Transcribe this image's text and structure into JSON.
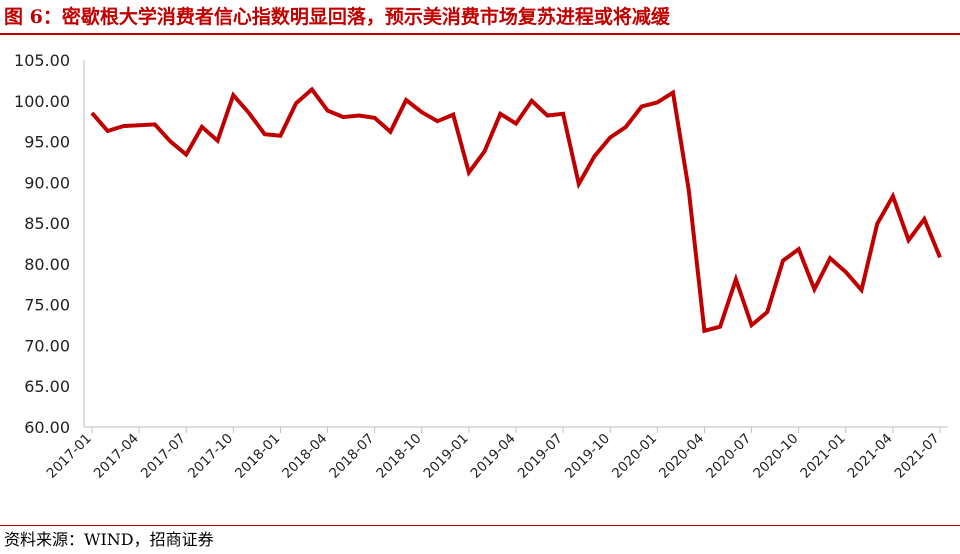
{
  "title": "图 6：密歇根大学消费者信心指数明显回落，预示美消费市场复苏进程或将减缓",
  "source": "资料来源：WIND，招商证券",
  "colors": {
    "line": "#c00000",
    "title": "#c00000",
    "axis": "#bfbfbf"
  },
  "chart_data": {
    "type": "line",
    "title": "",
    "xlabel": "",
    "ylabel": "",
    "ylim": [
      60,
      105
    ],
    "yticks": [
      "60.00",
      "65.00",
      "70.00",
      "75.00",
      "80.00",
      "85.00",
      "90.00",
      "95.00",
      "100.00",
      "105.00"
    ],
    "xtick_labels": [
      "2017-01",
      "2017-04",
      "2017-07",
      "2017-10",
      "2018-01",
      "2018-04",
      "2018-07",
      "2018-10",
      "2019-01",
      "2019-04",
      "2019-07",
      "2019-10",
      "2020-01",
      "2020-04",
      "2020-07",
      "2020-10",
      "2021-01",
      "2021-04",
      "2021-07"
    ],
    "grid": false,
    "legend": "none",
    "series": [
      {
        "x": [
          "2017-01",
          "2017-02",
          "2017-03",
          "2017-04",
          "2017-05",
          "2017-06",
          "2017-07",
          "2017-08",
          "2017-09",
          "2017-10",
          "2017-11",
          "2017-12",
          "2018-01",
          "2018-02",
          "2018-03",
          "2018-04",
          "2018-05",
          "2018-06",
          "2018-07",
          "2018-08",
          "2018-09",
          "2018-10",
          "2018-11",
          "2018-12",
          "2019-01",
          "2019-02",
          "2019-03",
          "2019-04",
          "2019-05",
          "2019-06",
          "2019-07",
          "2019-08",
          "2019-09",
          "2019-10",
          "2019-11",
          "2019-12",
          "2020-01",
          "2020-02",
          "2020-03",
          "2020-04",
          "2020-05",
          "2020-06",
          "2020-07",
          "2020-08",
          "2020-09",
          "2020-10",
          "2020-11",
          "2020-12",
          "2021-01",
          "2021-02",
          "2021-03",
          "2021-04",
          "2021-05",
          "2021-06",
          "2021-07"
        ],
        "values": [
          98.5,
          96.3,
          96.9,
          97.0,
          97.1,
          95.0,
          93.4,
          96.8,
          95.1,
          100.7,
          98.5,
          95.9,
          95.7,
          99.7,
          101.4,
          98.8,
          98.0,
          98.2,
          97.9,
          96.2,
          100.1,
          98.6,
          97.5,
          98.3,
          91.2,
          93.8,
          98.4,
          97.2,
          100.0,
          98.2,
          98.4,
          89.8,
          93.2,
          95.5,
          96.8,
          99.3,
          99.8,
          101.0,
          89.1,
          71.8,
          72.3,
          78.1,
          72.5,
          74.1,
          80.4,
          81.8,
          76.9,
          80.7,
          79.0,
          76.8,
          84.9,
          88.3,
          82.9,
          85.5,
          80.8
        ]
      }
    ]
  }
}
